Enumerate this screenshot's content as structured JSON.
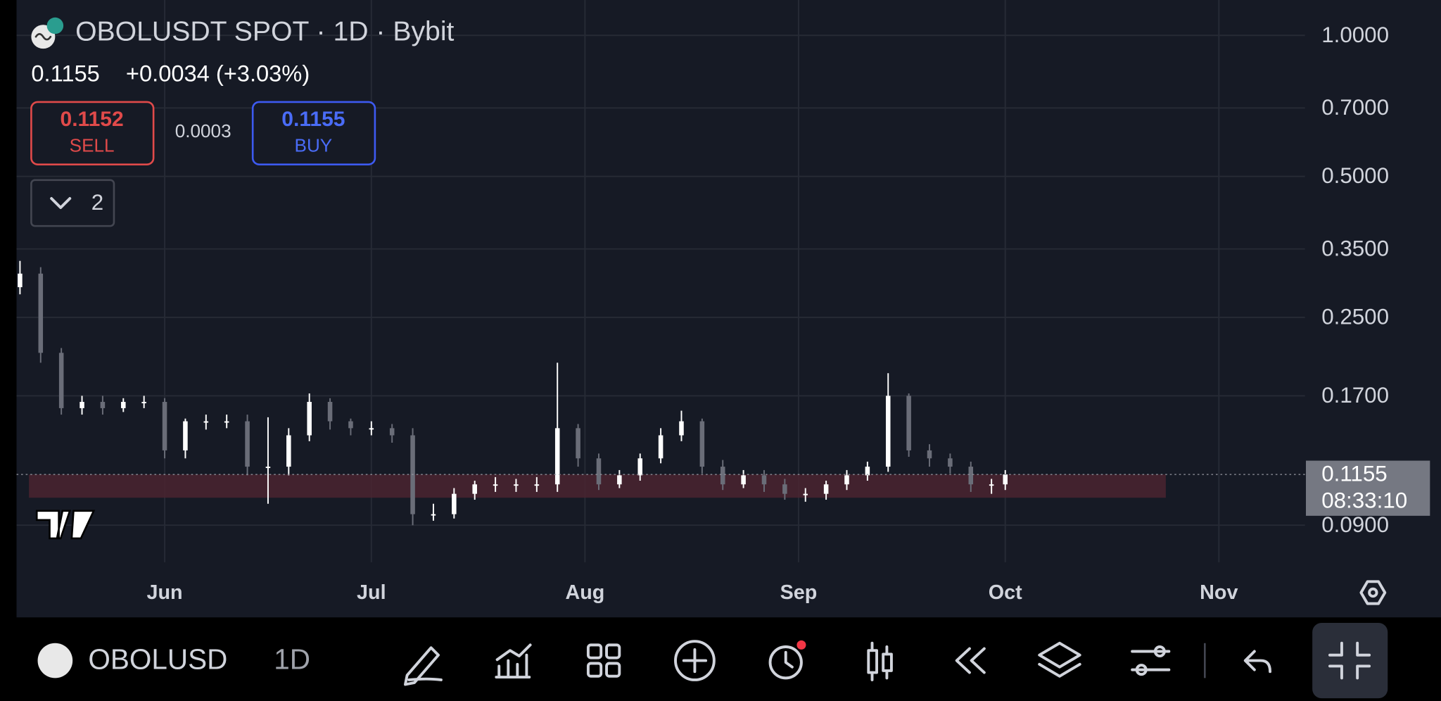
{
  "header": {
    "title": "OBOLUSDT SPOT · 1D · Bybit",
    "price": "0.1155",
    "change": "+0.0034 (+3.03%)",
    "sell_price": "0.1152",
    "sell_label": "SELL",
    "spread": "0.0003",
    "buy_price": "0.1155",
    "buy_label": "BUY",
    "indicator_count": "2",
    "price_label": "0.1155",
    "countdown": "08:33:10"
  },
  "toolbar": {
    "symbol": "OBOLUSD",
    "interval": "1D"
  },
  "chart_data": {
    "type": "candlestick",
    "log_scale": true,
    "grid": true,
    "ylim": [
      0.075,
      1.19
    ],
    "yticks": [
      {
        "value": 1,
        "label": "1.0000"
      },
      {
        "value": 0.7,
        "label": "0.7000"
      },
      {
        "value": 0.5,
        "label": "0.5000"
      },
      {
        "value": 0.35,
        "label": "0.3500"
      },
      {
        "value": 0.25,
        "label": "0.2500"
      },
      {
        "value": 0.17,
        "label": "0.1700"
      },
      {
        "value": 0.09,
        "label": "0.0900"
      }
    ],
    "xlim": [
      -21.5,
      165.5
    ],
    "xticks": [
      {
        "value": 0,
        "label": "Jun"
      },
      {
        "value": 30,
        "label": "Jul"
      },
      {
        "value": 61,
        "label": "Aug"
      },
      {
        "value": 92,
        "label": "Sep"
      },
      {
        "value": 122,
        "label": "Oct"
      },
      {
        "value": 153,
        "label": "Nov"
      }
    ],
    "up_color": "#ffffff",
    "down_color": "#6a6d78",
    "x": [
      -21,
      -18,
      -15,
      -12,
      -9,
      -6,
      -3,
      0,
      3,
      6,
      9,
      12,
      15,
      18,
      21,
      24,
      27,
      30,
      33,
      36,
      39,
      42,
      45,
      48,
      51,
      54,
      57,
      60,
      63,
      66,
      69,
      72,
      75,
      78,
      81,
      84,
      87,
      90,
      93,
      96,
      99,
      102,
      105,
      108,
      111,
      114,
      117,
      120,
      122
    ],
    "open": [
      0.29,
      0.31,
      0.21,
      0.16,
      0.165,
      0.16,
      0.165,
      0.165,
      0.13,
      0.15,
      0.15,
      0.15,
      0.12,
      0.12,
      0.14,
      0.165,
      0.15,
      0.145,
      0.145,
      0.14,
      0.095,
      0.095,
      0.105,
      0.11,
      0.11,
      0.11,
      0.11,
      0.145,
      0.125,
      0.11,
      0.115,
      0.125,
      0.14,
      0.15,
      0.12,
      0.11,
      0.115,
      0.11,
      0.105,
      0.105,
      0.11,
      0.115,
      0.12,
      0.17,
      0.13,
      0.125,
      0.12,
      0.11,
      0.11
    ],
    "high": [
      0.33,
      0.32,
      0.215,
      0.17,
      0.17,
      0.168,
      0.17,
      0.168,
      0.152,
      0.155,
      0.155,
      0.155,
      0.153,
      0.145,
      0.172,
      0.168,
      0.152,
      0.15,
      0.148,
      0.145,
      0.1,
      0.108,
      0.112,
      0.114,
      0.113,
      0.114,
      0.2,
      0.148,
      0.128,
      0.118,
      0.128,
      0.145,
      0.158,
      0.152,
      0.124,
      0.118,
      0.118,
      0.113,
      0.108,
      0.112,
      0.118,
      0.123,
      0.19,
      0.172,
      0.134,
      0.128,
      0.123,
      0.113,
      0.118
    ],
    "low": [
      0.28,
      0.2,
      0.155,
      0.155,
      0.155,
      0.157,
      0.16,
      0.125,
      0.125,
      0.144,
      0.145,
      0.115,
      0.1,
      0.115,
      0.136,
      0.144,
      0.14,
      0.14,
      0.135,
      0.09,
      0.092,
      0.093,
      0.102,
      0.106,
      0.106,
      0.106,
      0.106,
      0.12,
      0.107,
      0.108,
      0.112,
      0.122,
      0.136,
      0.116,
      0.107,
      0.108,
      0.106,
      0.102,
      0.101,
      0.102,
      0.107,
      0.112,
      0.117,
      0.126,
      0.12,
      0.116,
      0.106,
      0.105,
      0.107
    ],
    "close": [
      0.31,
      0.21,
      0.16,
      0.165,
      0.16,
      0.165,
      0.165,
      0.13,
      0.15,
      0.15,
      0.15,
      0.12,
      0.12,
      0.14,
      0.165,
      0.15,
      0.145,
      0.145,
      0.14,
      0.095,
      0.095,
      0.105,
      0.11,
      0.11,
      0.11,
      0.11,
      0.145,
      0.125,
      0.11,
      0.115,
      0.125,
      0.14,
      0.15,
      0.12,
      0.11,
      0.115,
      0.11,
      0.105,
      0.105,
      0.11,
      0.115,
      0.12,
      0.17,
      0.13,
      0.125,
      0.12,
      0.11,
      0.11,
      0.1155
    ],
    "last_price": 0.1155,
    "zone": {
      "low": 0.103,
      "high": 0.1155,
      "x": [
        -19.7,
        145.3
      ],
      "color": "#4a2430"
    }
  }
}
